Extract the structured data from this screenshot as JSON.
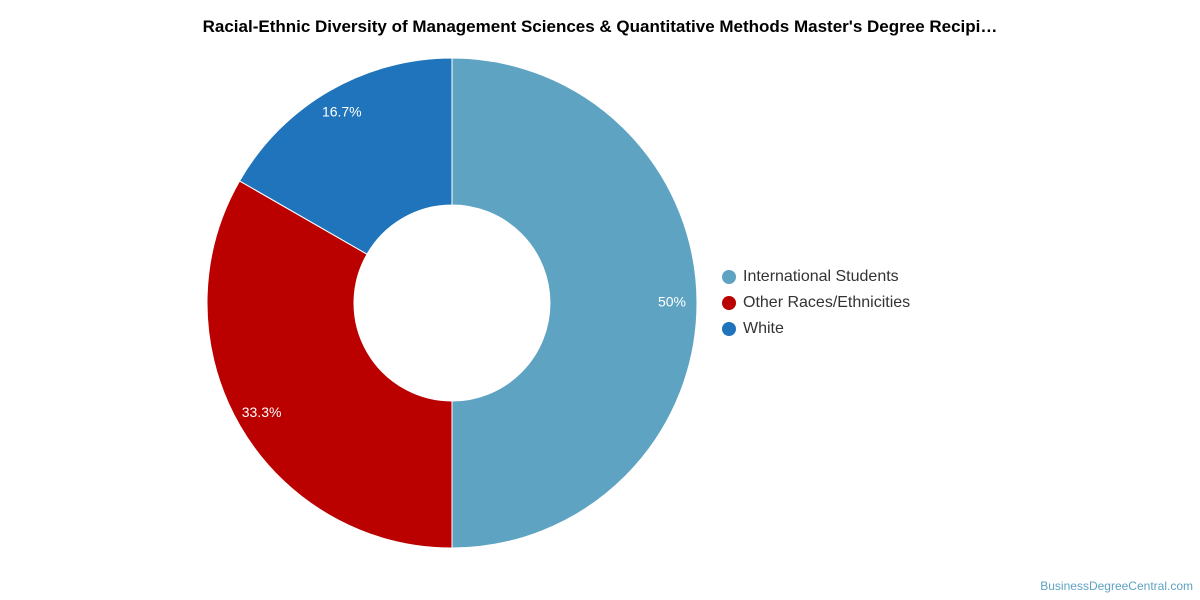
{
  "chart_data": {
    "type": "pie",
    "title": "Racial-Ethnic Diversity of Management Sciences & Quantitative Methods Master's Degree Recipi…",
    "donut": true,
    "categories": [
      "International Students",
      "Other Races/Ethnicities",
      "White"
    ],
    "values": [
      50,
      33.3,
      16.7
    ],
    "labels": [
      "50%",
      "33.3%",
      "16.7%"
    ],
    "colors": [
      "#5ea3c1",
      "#bb0000",
      "#1f74bb"
    ],
    "legend": "right"
  },
  "credit": "BusinessDegreeCentral.com"
}
